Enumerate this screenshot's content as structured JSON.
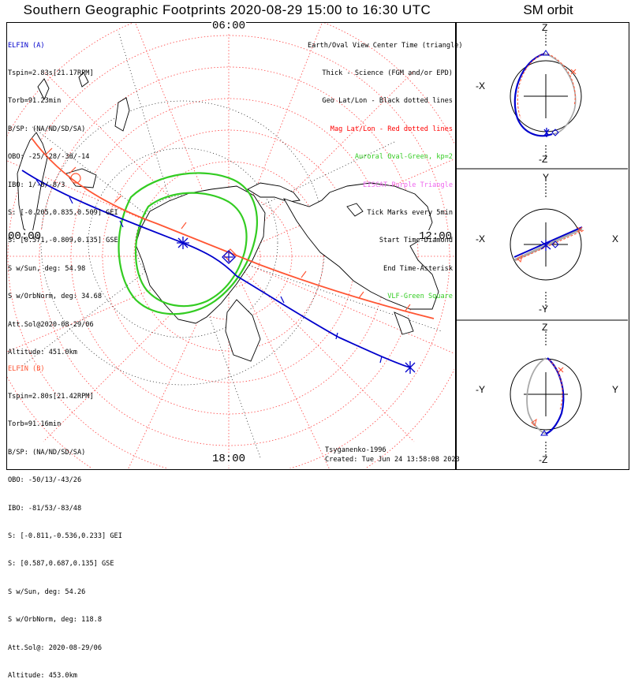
{
  "title": "Southern Geographic Footprints 2020-08-29 15:00 to 16:30 UTC",
  "sm_title": "SM orbit",
  "colors": {
    "a": "#0000cc",
    "b": "#ff5533",
    "green": "#33cc22",
    "magenta": "#ee66ee",
    "red": "#ff0000",
    "grid": "#ff4444"
  },
  "footprint_labels": {
    "top": "06:00",
    "left": "00:00",
    "right": "12:00",
    "bottom": "18:00"
  },
  "elfin_a": {
    "lines": [
      "ELFIN (A)",
      "Tspin=2.83s[21.17RPM]",
      "Torb=91.23min",
      "B/SP: (NA/ND/SD/SA)",
      "OBO: -25/-28/-30/-14",
      "IBO: 1/-8/-8/3",
      "S: [-0.205,0.835,0.509] GEI",
      "S: [0.571,-0.809,0.135] GSE",
      "S w/Sun, deg: 54.98",
      "S w/OrbNorm, deg: 34.68",
      "Att.Sol@2020-08-29/06",
      "Altitude: 451.0km"
    ]
  },
  "elfin_b": {
    "lines": [
      "ELFIN (B)",
      "Tspin=2.80s[21.42RPM]",
      "Torb=91.16min",
      "B/SP: (NA/ND/SD/SA)",
      "OBO: -50/13/-43/26",
      "IBO: -81/53/-83/48",
      "S: [-0.811,-0.536,0.233] GEI",
      "S: [0.587,0.687,0.135] GSE",
      "S w/Sun, deg: 54.26",
      "S w/OrbNorm, deg: 118.8",
      "Att.Sol@: 2020-08-29/06",
      "Altitude: 453.0km"
    ]
  },
  "legend": [
    {
      "text": "Earth/Oval View Center Time (triangle)",
      "color": "#000000"
    },
    {
      "text": "Thick - Science (FGM and/or EPD)",
      "color": "#000000"
    },
    {
      "text": "Geo Lat/Lon - Black dotted lines",
      "color": "#000000"
    },
    {
      "text": "Mag Lat/Lon - Red dotted lines",
      "color": "#ff0000"
    },
    {
      "text": "Auroral Oval-Green, kp=2",
      "color": "#33cc22"
    },
    {
      "text": "EISCAT-Purple Triangle",
      "color": "#ee66ee"
    },
    {
      "text": "Tick Marks every 5min",
      "color": "#000000"
    },
    {
      "text": "Start Time-Diamond",
      "color": "#000000"
    },
    {
      "text": "End Time-Asterisk",
      "color": "#000000"
    },
    {
      "text": "VLF-Green Square",
      "color": "#33cc22"
    }
  ],
  "footer": {
    "model": "Tsyganenko-1996",
    "created": "Created: Tue Jun 24 13:58:08 2023"
  },
  "sm_panels": [
    {
      "top": "Z",
      "bottom": "-Z",
      "left": "-X",
      "right": ""
    },
    {
      "top": "Y",
      "bottom": "-Y",
      "left": "-X",
      "right": "X"
    },
    {
      "top": "Z",
      "bottom": "-Z",
      "left": "-Y",
      "right": "Y"
    }
  ]
}
